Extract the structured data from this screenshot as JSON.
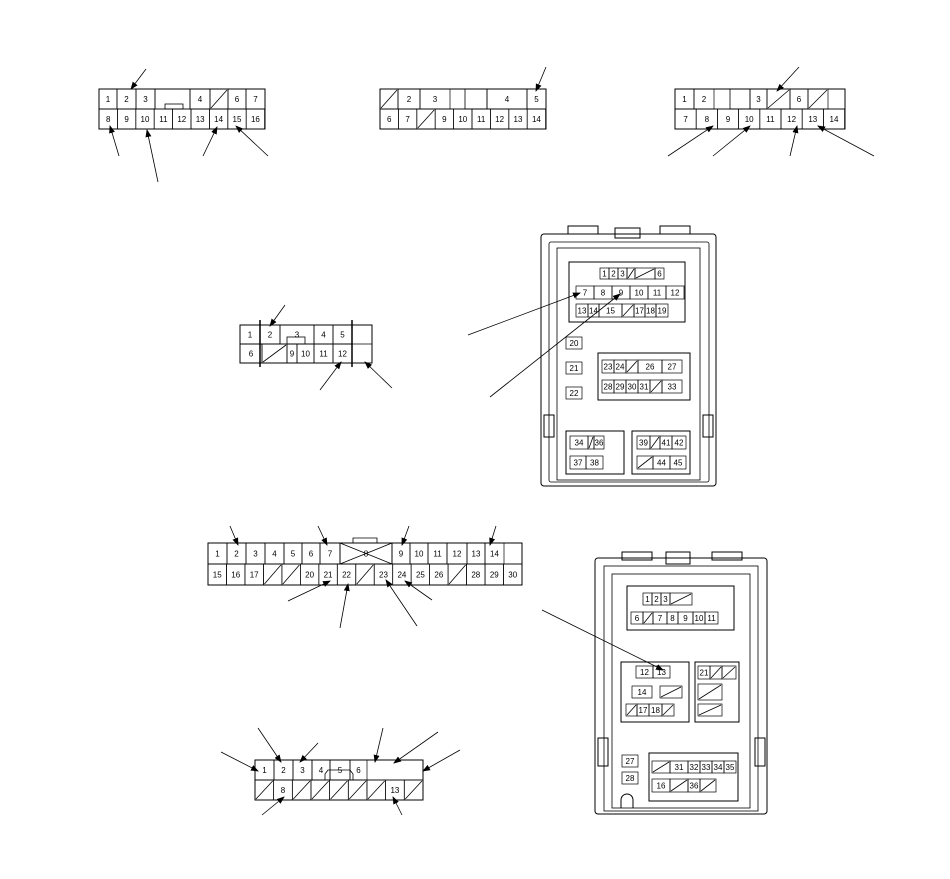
{
  "connectors": [
    {
      "name": "connector-a",
      "top": [
        "1",
        "2",
        "3",
        "",
        "",
        "",
        "4",
        "/",
        "6",
        "7"
      ],
      "bottom": [
        "8",
        "9",
        "10",
        "11",
        "12",
        "13",
        "14",
        "15",
        "16"
      ]
    },
    {
      "name": "connector-b",
      "top": [
        "/",
        "2",
        "3",
        "",
        "",
        "4",
        "5"
      ],
      "bottom": [
        "6",
        "7",
        "/",
        "9",
        "10",
        "11",
        "12",
        "13",
        "14"
      ]
    },
    {
      "name": "connector-c",
      "top": [
        "1",
        "2",
        "",
        "",
        "3",
        "/",
        "6",
        "/"
      ],
      "bottom": [
        "7",
        "8",
        "9",
        "10",
        "11",
        "12",
        "13",
        "14"
      ]
    },
    {
      "name": "connector-d",
      "top": [
        "1",
        "2",
        "3",
        "4",
        "5"
      ],
      "bottom": [
        "6",
        "/",
        "9",
        "10",
        "11",
        "12"
      ]
    },
    {
      "name": "connector-e",
      "top": [
        "1",
        "2",
        "3",
        "4",
        "5",
        "6",
        "7",
        "8",
        "9",
        "10",
        "11",
        "12",
        "13",
        "14"
      ],
      "bottom": [
        "15",
        "16",
        "17",
        "/",
        "/",
        "20",
        "21",
        "22",
        "/",
        "23",
        "24",
        "25",
        "26",
        "/",
        "28",
        "29",
        "30"
      ]
    },
    {
      "name": "connector-f",
      "top": [
        "1",
        "2",
        "3",
        "4",
        "5",
        "6"
      ],
      "bottom": [
        "/",
        "8",
        "/",
        "/",
        "/",
        "/",
        "/",
        "13",
        "/"
      ]
    }
  ],
  "fuse_box_1": {
    "row1": [
      "1",
      "2",
      "3",
      "/",
      "/",
      "6"
    ],
    "row2": [
      "7",
      "8",
      "9",
      "10",
      "11",
      "12"
    ],
    "row3": [
      "13",
      "14",
      "15",
      "/",
      "17",
      "18",
      "19"
    ],
    "singles": [
      "20",
      "21",
      "22"
    ],
    "mid1": [
      "23",
      "24",
      "/",
      "26",
      "27"
    ],
    "mid2": [
      "28",
      "29",
      "30",
      "31",
      "/",
      "33"
    ],
    "bl1": [
      "34",
      "/",
      "36"
    ],
    "bl2": [
      "37",
      "38"
    ],
    "br1": [
      "39",
      "/",
      "41",
      "42"
    ],
    "br2": [
      "/",
      "44",
      "45"
    ]
  },
  "fuse_box_2": {
    "g1a": [
      "1",
      "2",
      "3",
      "/"
    ],
    "g1b": [
      "6",
      "/",
      "7",
      "8",
      "9",
      "10",
      "11"
    ],
    "g2": [
      "12",
      "13",
      "14",
      "/",
      "/",
      "17",
      "18",
      "/"
    ],
    "g3": [
      "21",
      "/",
      "/",
      "/",
      "/"
    ],
    "singles": [
      "27",
      "28"
    ],
    "g4a": [
      "/",
      "31",
      "32",
      "33",
      "34",
      "35"
    ],
    "g4b": [
      "16",
      "/",
      "36",
      "/"
    ]
  }
}
